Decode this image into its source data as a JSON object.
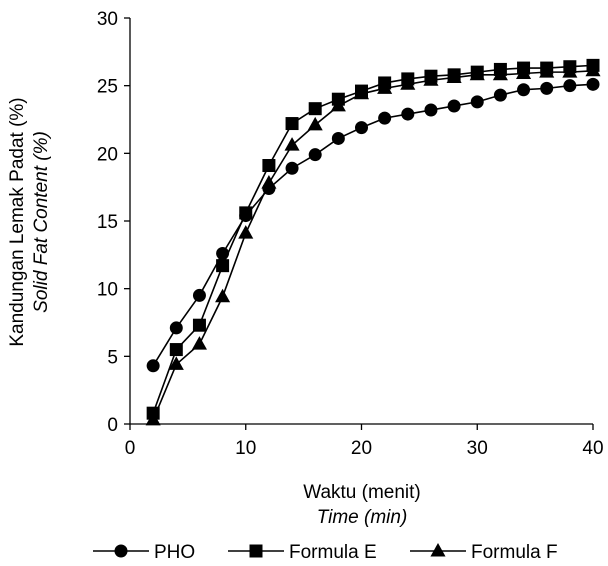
{
  "chart_data": {
    "type": "line",
    "title": "",
    "xlabel": "Waktu (menit)",
    "xlabel_en": "Time (min)",
    "ylabel": "Kandungan Lemak Padat (%)",
    "ylabel_en": "Solid Fat Content (%)",
    "xlim": [
      0,
      40
    ],
    "ylim": [
      0,
      30
    ],
    "x_ticks": [
      0,
      10,
      20,
      30,
      40
    ],
    "y_ticks": [
      0,
      5,
      10,
      15,
      20,
      25,
      30
    ],
    "x_tick_labels": [
      "0",
      "10",
      "20",
      "30",
      "40"
    ],
    "y_tick_labels": [
      "0",
      "5",
      "10",
      "15",
      "20",
      "25",
      "30"
    ],
    "grid": false,
    "legend_position": "bottom",
    "x": [
      2,
      4,
      6,
      8,
      10,
      12,
      14,
      16,
      18,
      20,
      22,
      24,
      26,
      28,
      30,
      32,
      34,
      36,
      38,
      40
    ],
    "series": [
      {
        "name": "PHO",
        "marker": "circle",
        "color": "#000000",
        "values": [
          4.3,
          7.1,
          9.5,
          12.6,
          15.4,
          17.4,
          18.9,
          19.9,
          21.1,
          21.9,
          22.6,
          22.9,
          23.2,
          23.5,
          23.8,
          24.3,
          24.7,
          24.8,
          25.0,
          25.1
        ]
      },
      {
        "name": "Formula E",
        "marker": "square",
        "color": "#000000",
        "values": [
          0.8,
          5.5,
          7.3,
          11.7,
          15.6,
          19.1,
          22.2,
          23.3,
          24.0,
          24.6,
          25.2,
          25.5,
          25.7,
          25.8,
          26.0,
          26.2,
          26.3,
          26.3,
          26.4,
          26.5
        ]
      },
      {
        "name": "Formula F",
        "marker": "triangle",
        "color": "#000000",
        "values": [
          0.3,
          4.4,
          5.9,
          9.4,
          14.1,
          17.8,
          20.6,
          22.1,
          23.5,
          24.4,
          24.8,
          25.1,
          25.4,
          25.6,
          25.8,
          25.8,
          25.9,
          26.0,
          26.0,
          26.1
        ]
      }
    ]
  }
}
